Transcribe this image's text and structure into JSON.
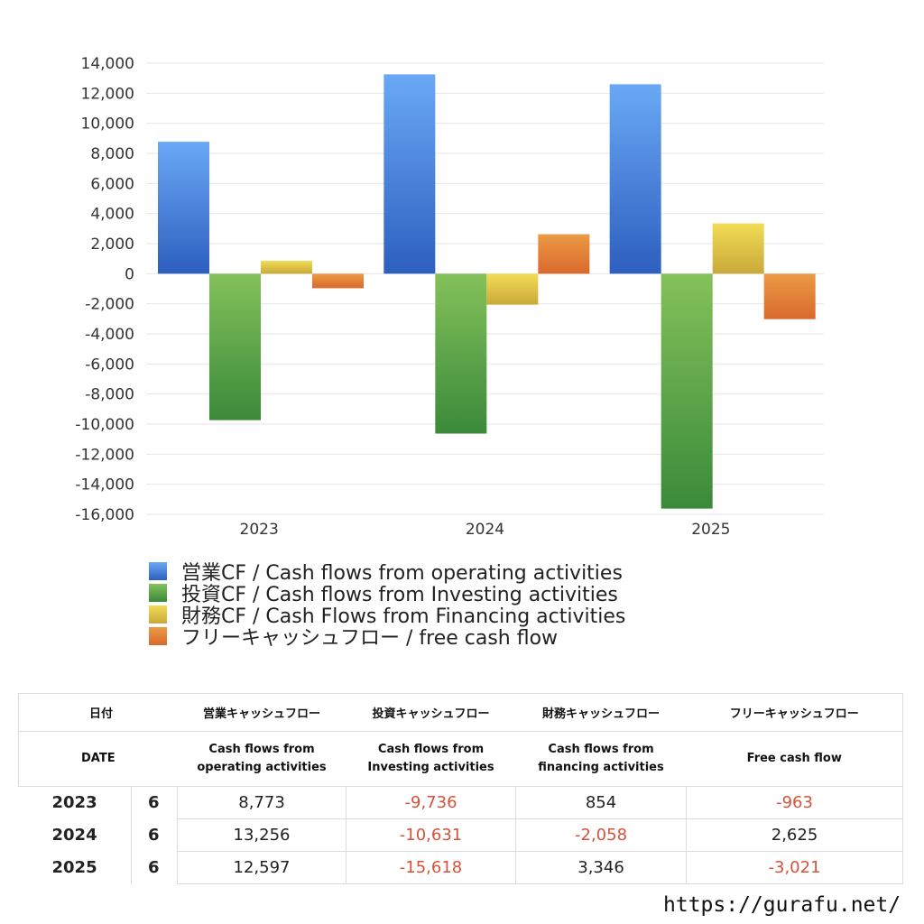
{
  "chart_data": {
    "type": "bar",
    "categories": [
      "2023",
      "2024",
      "2025"
    ],
    "ylim": [
      -16000,
      14000
    ],
    "yticks": [
      14000,
      12000,
      10000,
      8000,
      6000,
      4000,
      2000,
      0,
      -2000,
      -4000,
      -6000,
      -8000,
      -10000,
      -12000,
      -14000,
      -16000
    ],
    "ytick_labels": [
      "14,000",
      "12,000",
      "10,000",
      "8,000",
      "6,000",
      "4,000",
      "2,000",
      "0",
      "-2,000",
      "-4,000",
      "-6,000",
      "-8,000",
      "-10,000",
      "-12,000",
      "-14,000",
      "-16,000"
    ],
    "grid": true,
    "legend_position": "bottom",
    "series": [
      {
        "name": "営業CF / Cash flows from operating activities",
        "values": [
          8773,
          13256,
          12597
        ],
        "color_top": "#6aa8f5",
        "color_bottom": "#2d5fbf"
      },
      {
        "name": "投資CF / Cash flows from Investing activities",
        "values": [
          -9736,
          -10631,
          -15618
        ],
        "color_top": "#84c15a",
        "color_bottom": "#3a8a3a"
      },
      {
        "name": "財務CF / Cash Flows from Financing activities",
        "values": [
          854,
          -2058,
          3346
        ],
        "color_top": "#f2dc55",
        "color_bottom": "#c9a93a"
      },
      {
        "name": "フリーキャッシュフロー / free cash flow",
        "values": [
          -963,
          2625,
          -3021
        ],
        "color_top": "#eb9a45",
        "color_bottom": "#d9692c"
      }
    ]
  },
  "table": {
    "header_jp": {
      "date": "日付",
      "operating": "営業キャッシュフロー",
      "investing": "投資キャッシュフロー",
      "financing": "財務キャッシュフロー",
      "free": "フリーキャッシュフロー"
    },
    "header_en": {
      "date": "DATE",
      "operating": "Cash flows from operating activities",
      "investing": "Cash flows from Investing activities",
      "financing": "Cash flows from financing activities",
      "free": "Free cash flow"
    },
    "rows": [
      {
        "year": "2023",
        "month": "6",
        "operating": "8,773",
        "investing": "-9,736",
        "financing": "854",
        "free": "-963"
      },
      {
        "year": "2024",
        "month": "6",
        "operating": "13,256",
        "investing": "-10,631",
        "financing": "-2,058",
        "free": "2,625"
      },
      {
        "year": "2025",
        "month": "6",
        "operating": "12,597",
        "investing": "-15,618",
        "financing": "3,346",
        "free": "-3,021"
      }
    ]
  },
  "source_url": "https://gurafu.net/"
}
